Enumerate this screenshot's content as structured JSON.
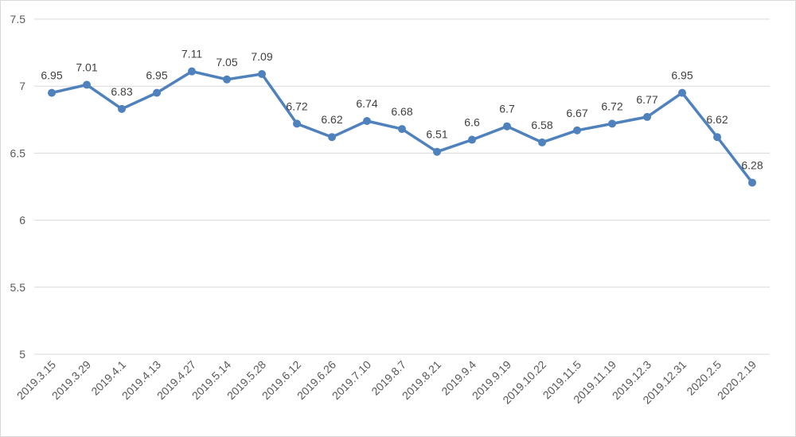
{
  "chart_data": {
    "type": "line",
    "title": "",
    "xlabel": "",
    "ylabel": "",
    "ylim": [
      5,
      7.5
    ],
    "y_ticks": [
      "5",
      "5.5",
      "6",
      "6.5",
      "7",
      "7.5"
    ],
    "grid": true,
    "legend": "none",
    "categories": [
      "2019.3.15",
      "2019.3.29",
      "2019.4.1",
      "2019.4.13",
      "2019.4.27",
      "2019.5.14",
      "2019.5.28",
      "2019.6.12",
      "2019.6.26",
      "2019.7.10",
      "2019.8.7",
      "2019.8.21",
      "2019.9.4",
      "2019.9.19",
      "2019.10.22",
      "2019.11.5",
      "2019.11.19",
      "2019.12.3",
      "2019.12.31",
      "2020.2.5",
      "2020.2.19"
    ],
    "series": [
      {
        "values": [
          6.95,
          7.01,
          6.83,
          6.95,
          7.11,
          7.05,
          7.09,
          6.72,
          6.62,
          6.74,
          6.68,
          6.51,
          6.6,
          6.7,
          6.58,
          6.67,
          6.72,
          6.77,
          6.95,
          6.62,
          6.28
        ],
        "value_labels": [
          "6.95",
          "7.01",
          "6.83",
          "6.95",
          "7.11",
          "7.05",
          "7.09",
          "6.72",
          "6.62",
          "6.74",
          "6.68",
          "6.51",
          "6.6",
          "6.7",
          "6.58",
          "6.67",
          "6.72",
          "6.77",
          "6.95",
          "6.62",
          "6.28"
        ],
        "color": "#4f81bd"
      }
    ]
  }
}
